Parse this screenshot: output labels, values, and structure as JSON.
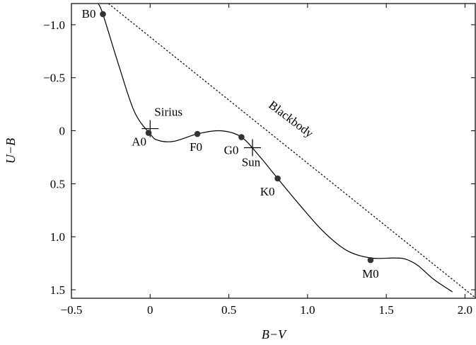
{
  "chart_data": {
    "type": "line",
    "title": "",
    "xlabel": "B−V",
    "ylabel": "U−B",
    "xlim": [
      -0.5,
      2.07
    ],
    "ylim": [
      -1.2,
      1.58
    ],
    "y_inverted": true,
    "grid": false,
    "x_ticks": [
      {
        "value": -0.5,
        "label": "−0.5"
      },
      {
        "value": 0,
        "label": "0"
      },
      {
        "value": 0.5,
        "label": "0.5"
      },
      {
        "value": 1.0,
        "label": "1.0"
      },
      {
        "value": 1.5,
        "label": "1.5"
      },
      {
        "value": 2.0,
        "label": "2.0"
      }
    ],
    "y_ticks": [
      {
        "value": -1.0,
        "label": "−1.0"
      },
      {
        "value": -0.5,
        "label": "−0.5"
      },
      {
        "value": 0,
        "label": "0"
      },
      {
        "value": 0.5,
        "label": "0.5"
      },
      {
        "value": 1.0,
        "label": "1.0"
      },
      {
        "value": 1.5,
        "label": "1.5"
      }
    ],
    "series": [
      {
        "style": "solid",
        "x": [
          -0.33,
          -0.3,
          -0.2,
          -0.1,
          0.0,
          0.05,
          0.15,
          0.3,
          0.45,
          0.58,
          0.7,
          0.81,
          0.95,
          1.1,
          1.25,
          1.4,
          1.55,
          1.62,
          1.7,
          1.8,
          1.92
        ],
        "y": [
          -1.2,
          -1.1,
          -0.62,
          -0.18,
          0.03,
          0.09,
          0.1,
          0.03,
          0.0,
          0.06,
          0.25,
          0.45,
          0.7,
          0.95,
          1.13,
          1.2,
          1.2,
          1.21,
          1.27,
          1.4,
          1.52
        ]
      },
      {
        "name": "Blackbody",
        "style": "dotted",
        "x": [
          -0.265,
          2.07
        ],
        "y": [
          -1.2,
          1.58
        ]
      }
    ],
    "points": [
      {
        "label": "B0",
        "x": -0.3,
        "y": -1.1
      },
      {
        "label": "A0",
        "x": -0.01,
        "y": 0.02
      },
      {
        "label": "F0",
        "x": 0.3,
        "y": 0.03
      },
      {
        "label": "G0",
        "x": 0.58,
        "y": 0.06
      },
      {
        "label": "K0",
        "x": 0.81,
        "y": 0.45
      },
      {
        "label": "M0",
        "x": 1.4,
        "y": 1.22
      }
    ],
    "markers": [
      {
        "label": "Sirius",
        "x": 0.0,
        "y": -0.02
      },
      {
        "label": "Sun",
        "x": 0.65,
        "y": 0.16
      }
    ],
    "annotations": [
      {
        "text": "Blackbody",
        "x": 0.88,
        "y": -0.08
      }
    ]
  }
}
